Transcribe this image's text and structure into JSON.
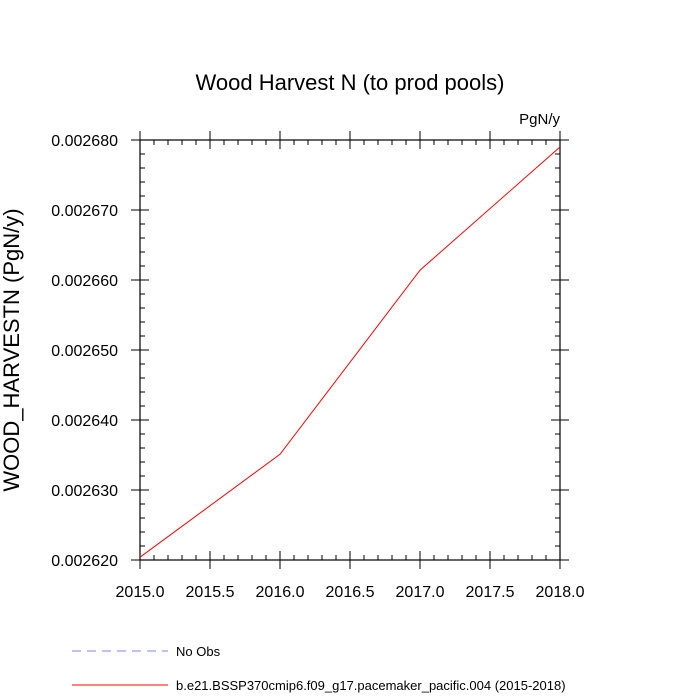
{
  "chart_data": {
    "type": "line",
    "title": "Wood Harvest N (to prod pools)",
    "units_label": "PgN/y",
    "xlabel": "",
    "ylabel": "WOOD_HARVESTN  (PgN/y)",
    "xlim": [
      2015.0,
      2018.0
    ],
    "ylim": [
      0.00262,
      0.00268
    ],
    "x_ticks": [
      2015.0,
      2015.5,
      2016.0,
      2016.5,
      2017.0,
      2017.5,
      2018.0
    ],
    "x_tick_labels": [
      "2015.0",
      "2015.5",
      "2016.0",
      "2016.5",
      "2017.0",
      "2017.5",
      "2018.0"
    ],
    "y_ticks": [
      0.00262,
      0.00263,
      0.00264,
      0.00265,
      0.00266,
      0.00267,
      0.00268
    ],
    "y_tick_labels": [
      "0.002620",
      "0.002630",
      "0.002640",
      "0.002650",
      "0.002660",
      "0.002670",
      "0.002680"
    ],
    "grid": false,
    "legend_position": "bottom-left",
    "series": [
      {
        "name": "b.e21.BSSP370cmip6.f09_g17.pacemaker_pacific.004 (2015-2018)",
        "color": "#ff0000",
        "dash": "solid",
        "x": [
          2015.0,
          2016.0,
          2017.0,
          2018.0
        ],
        "y": [
          0.0026204,
          0.0026351,
          0.0026614,
          0.002679
        ]
      },
      {
        "name": "No Obs",
        "color": "#8080ff",
        "dash": "dashed",
        "x": [],
        "y": []
      }
    ]
  }
}
